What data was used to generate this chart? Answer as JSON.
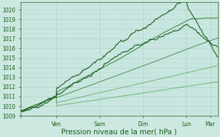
{
  "bg_color": "#cce8e0",
  "grid_color_major": "#aacccc",
  "grid_color_minor": "#bbdddd",
  "line_dark": "#1a5c1a",
  "line_mid": "#2e7d2e",
  "line_light": "#5aaa5a",
  "ylim": [
    1009.0,
    1020.8
  ],
  "yticks": [
    1009,
    1010,
    1011,
    1012,
    1013,
    1014,
    1015,
    1016,
    1017,
    1018,
    1019,
    1020
  ],
  "xlabel": "Pression niveau de la mer( hPa )",
  "xlabel_fontsize": 7.5,
  "tick_fontsize": 5.5,
  "n_points": 400,
  "xtick_positions": [
    0.0,
    0.18,
    0.4,
    0.62,
    0.84,
    0.96
  ],
  "xtick_labels": [
    "",
    "Ven",
    "Sam",
    "Dim",
    "Lun",
    "Mar"
  ]
}
